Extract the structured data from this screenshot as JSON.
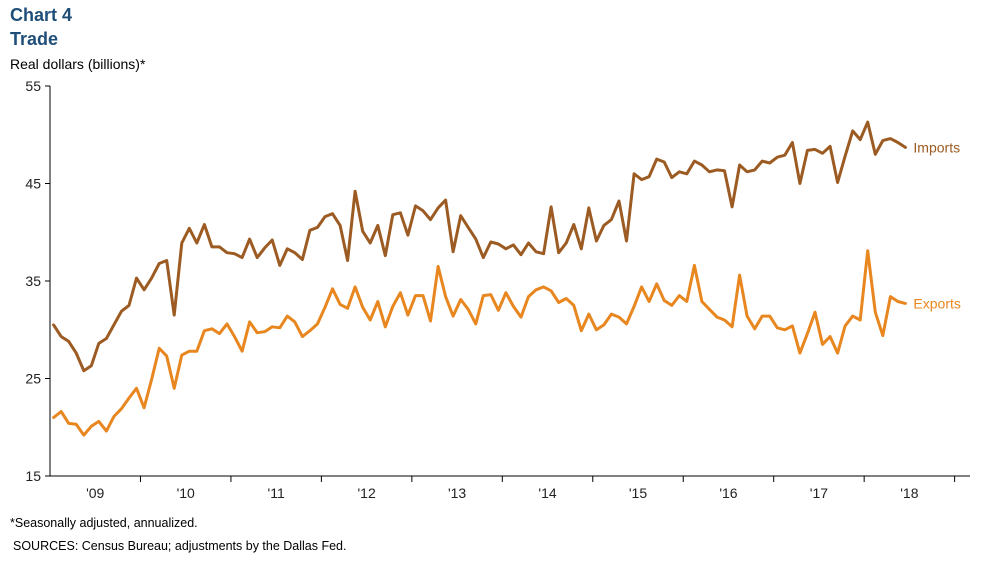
{
  "header": {
    "chart_number": "Chart 4",
    "title": "Trade",
    "units": "Real dollars (billions)*"
  },
  "footer": {
    "footnote": "*Seasonally adjusted, annualized.",
    "sources": "SOURCES: Census Bureau; adjustments by the Dallas Fed."
  },
  "colors": {
    "imports": "#9c5b22",
    "exports": "#e8861f",
    "axis": "#000000"
  },
  "chart_data": {
    "type": "line",
    "title": "Trade",
    "ylabel": "Real dollars (billions)*",
    "xlabel": "",
    "ylim": [
      15,
      55
    ],
    "yticks": [
      15,
      25,
      35,
      45,
      55
    ],
    "xlim": [
      2008.5,
      2018.67
    ],
    "x_tick_labels": [
      "'09",
      "'10",
      "'11",
      "'12",
      "'13",
      "'14",
      "'15",
      "'16",
      "'17",
      "'18"
    ],
    "x_tick_positions": [
      2009,
      2010,
      2011,
      2012,
      2013,
      2014,
      2015,
      2016,
      2017,
      2018
    ],
    "x_start": 2008.54,
    "x_step": 0.08333,
    "grid": false,
    "legend": "inline-right",
    "series": [
      {
        "name": "Imports",
        "values": [
          30.5,
          29.3,
          28.8,
          27.6,
          25.8,
          26.3,
          28.6,
          29.1,
          30.5,
          31.9,
          32.5,
          35.3,
          34.1,
          35.3,
          36.8,
          37.1,
          31.5,
          38.9,
          40.4,
          38.9,
          40.8,
          38.5,
          38.5,
          37.9,
          37.8,
          37.4,
          39.3,
          37.4,
          38.4,
          39.2,
          36.6,
          38.3,
          37.9,
          37.2,
          40.2,
          40.5,
          41.6,
          41.9,
          40.7,
          37.1,
          44.2,
          40.1,
          38.9,
          40.7,
          37.6,
          41.8,
          42.0,
          39.7,
          42.7,
          42.2,
          41.3,
          42.5,
          43.3,
          38.0,
          41.7,
          40.5,
          39.3,
          37.4,
          39.0,
          38.8,
          38.3,
          38.7,
          37.7,
          38.9,
          38.0,
          37.8,
          42.6,
          37.9,
          38.9,
          40.8,
          38.3,
          42.5,
          39.1,
          40.7,
          41.3,
          43.2,
          39.1,
          46.0,
          45.4,
          45.7,
          47.5,
          47.2,
          45.6,
          46.2,
          46.0,
          47.3,
          46.9,
          46.2,
          46.4,
          46.3,
          42.6,
          46.9,
          46.2,
          46.4,
          47.3,
          47.1,
          47.7,
          47.9,
          49.2,
          45.0,
          48.4,
          48.5,
          48.1,
          48.8,
          45.1,
          47.8,
          50.4,
          49.5,
          51.3,
          48.0,
          49.4,
          49.6,
          49.2,
          48.7
        ]
      },
      {
        "name": "Exports",
        "values": [
          21.0,
          21.6,
          20.4,
          20.3,
          19.2,
          20.1,
          20.6,
          19.6,
          21.1,
          21.9,
          23.0,
          24.0,
          22.0,
          24.9,
          28.1,
          27.3,
          24.0,
          27.4,
          27.8,
          27.8,
          29.9,
          30.1,
          29.6,
          30.6,
          29.3,
          27.8,
          30.8,
          29.7,
          29.8,
          30.3,
          30.2,
          31.4,
          30.8,
          29.3,
          29.9,
          30.6,
          32.3,
          34.2,
          32.6,
          32.2,
          34.4,
          32.3,
          31.0,
          32.9,
          30.3,
          32.4,
          33.8,
          31.5,
          33.5,
          33.5,
          30.9,
          36.5,
          33.4,
          31.4,
          33.1,
          32.1,
          30.6,
          33.5,
          33.6,
          32.0,
          33.8,
          32.4,
          31.3,
          33.4,
          34.1,
          34.4,
          34.0,
          32.8,
          33.2,
          32.5,
          29.9,
          31.6,
          30.0,
          30.5,
          31.6,
          31.3,
          30.6,
          32.4,
          34.4,
          32.9,
          34.7,
          33.0,
          32.5,
          33.5,
          32.9,
          36.6,
          32.9,
          32.1,
          31.3,
          31.0,
          30.3,
          35.6,
          31.4,
          30.1,
          31.4,
          31.4,
          30.2,
          30.0,
          30.4,
          27.6,
          29.6,
          31.8,
          28.5,
          29.3,
          27.6,
          30.4,
          31.4,
          31.0,
          38.1,
          31.8,
          29.4,
          33.4,
          32.9,
          32.7
        ]
      }
    ]
  }
}
